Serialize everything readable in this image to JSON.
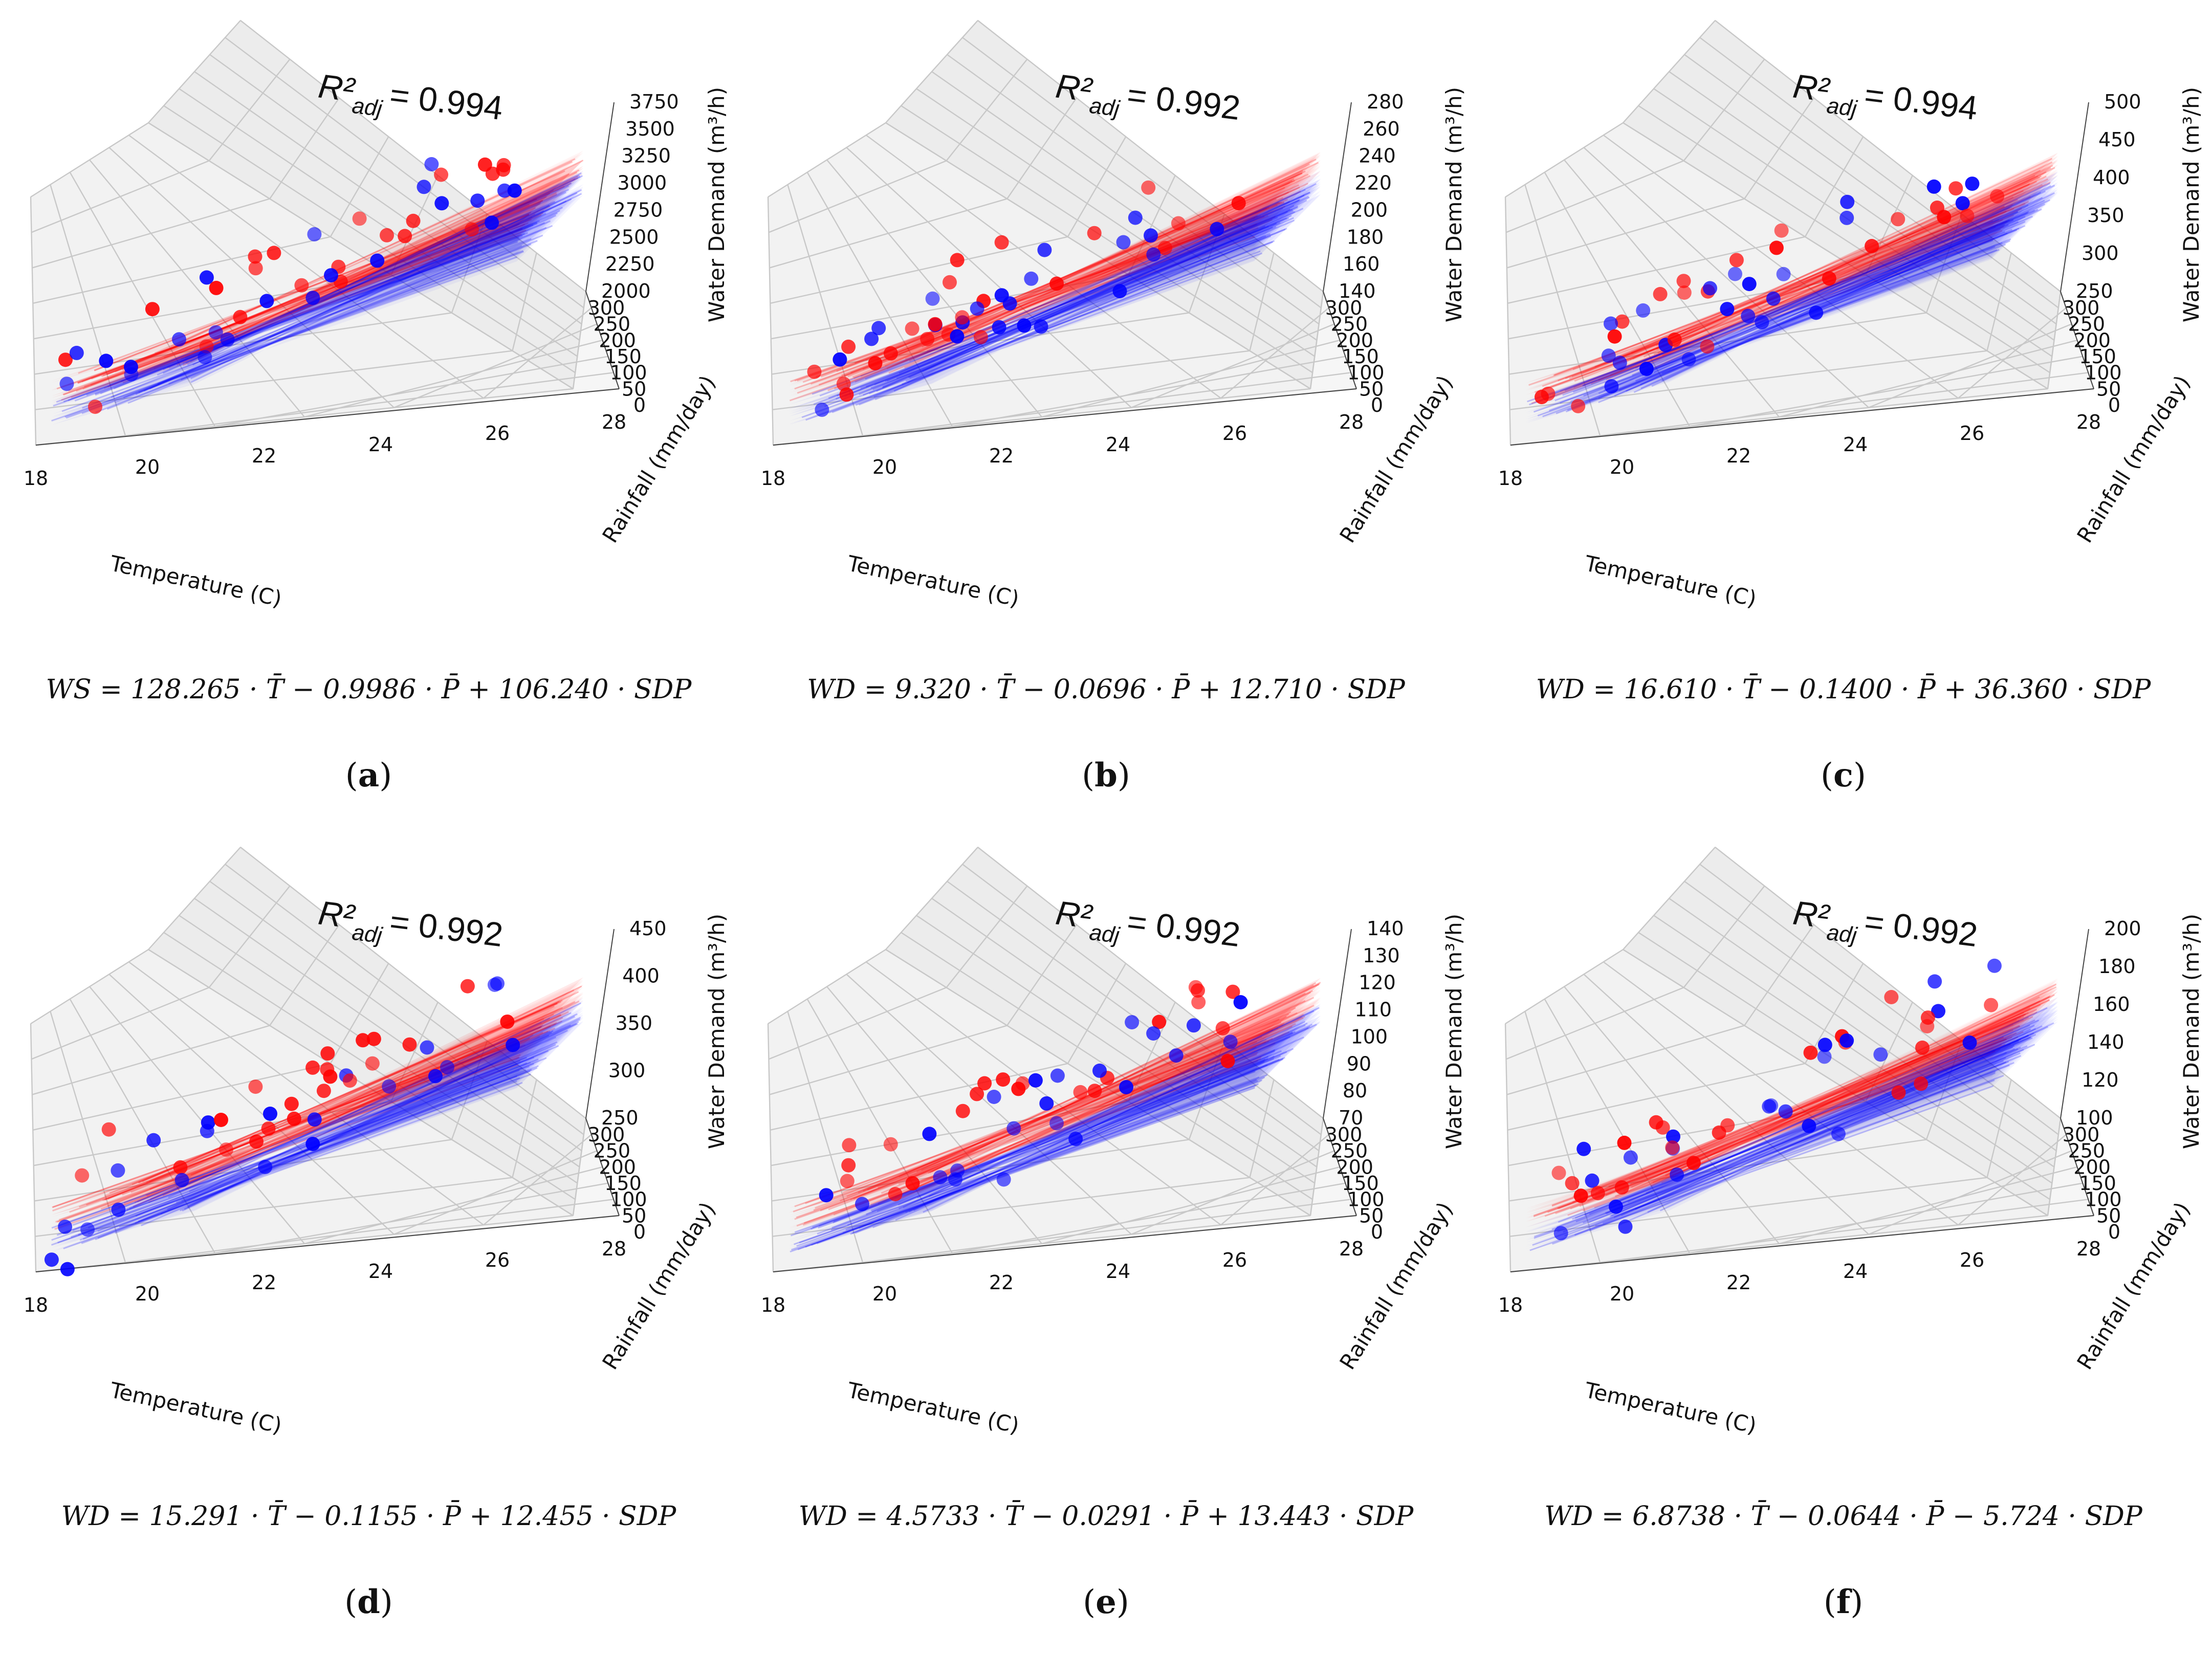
{
  "figure": {
    "panels": [
      {
        "id": "a",
        "label": "a",
        "r2_value": "= 0.994",
        "equation": "WS = 128.265 · T̄ − 0.9986 · P̄ + 106.240 · SDP",
        "z_ticks": [
          "2000",
          "2250",
          "2500",
          "2750",
          "3000",
          "3250",
          "3500",
          "3750"
        ]
      },
      {
        "id": "b",
        "label": "b",
        "r2_value": "= 0.992",
        "equation": "WD = 9.320 · T̄ − 0.0696 · P̄ + 12.710 · SDP",
        "z_ticks": [
          "140",
          "160",
          "180",
          "200",
          "220",
          "240",
          "260",
          "280"
        ]
      },
      {
        "id": "c",
        "label": "c",
        "r2_value": "= 0.994",
        "equation": "WD = 16.610 · T̄ − 0.1400 · P̄ + 36.360 · SDP",
        "z_ticks": [
          "250",
          "300",
          "350",
          "400",
          "450",
          "500"
        ]
      },
      {
        "id": "d",
        "label": "d",
        "r2_value": "= 0.992",
        "equation": "WD = 15.291 · T̄ − 0.1155 · P̄ + 12.455 · SDP",
        "z_ticks": [
          "250",
          "300",
          "350",
          "400",
          "450"
        ]
      },
      {
        "id": "e",
        "label": "e",
        "r2_value": "= 0.992",
        "equation": "WD = 4.5733 · T̄ − 0.0291 · P̄ + 13.443 · SDP",
        "z_ticks": [
          "70",
          "80",
          "90",
          "100",
          "110",
          "120",
          "130",
          "140"
        ]
      },
      {
        "id": "f",
        "label": "f",
        "r2_value": "= 0.992",
        "equation": "WD = 6.8738 · T̄ − 0.0644 · P̄ − 5.724 · SDP",
        "z_ticks": [
          "100",
          "120",
          "140",
          "160",
          "180",
          "200"
        ]
      }
    ]
  },
  "chart_data": {
    "type": "scatter",
    "subtype": "3d-scatter-with-regression-planes",
    "axes": {
      "x_label": "Temperature (C)",
      "y_label": "Rainfall (mm/day)",
      "z_label": "Water Demand (m³/h)",
      "x_ticks": [
        "18",
        "20",
        "22",
        "24",
        "26",
        "28"
      ],
      "y_ticks": [
        "0",
        "50",
        "100",
        "150",
        "200",
        "250",
        "300"
      ],
      "r2_prefix": "R²",
      "r2_sub": "adj"
    },
    "series": [
      {
        "name": "red observations / fitted planes",
        "color": "#ff0000"
      },
      {
        "name": "blue observations / fitted planes",
        "color": "#0000ff"
      }
    ],
    "panels": [
      {
        "id": "a",
        "zlim": [
          2000,
          3750
        ],
        "r2_adj": 0.994
      },
      {
        "id": "b",
        "zlim": [
          140,
          280
        ],
        "r2_adj": 0.992
      },
      {
        "id": "c",
        "zlim": [
          250,
          500
        ],
        "r2_adj": 0.994
      },
      {
        "id": "d",
        "zlim": [
          250,
          450
        ],
        "r2_adj": 0.992
      },
      {
        "id": "e",
        "zlim": [
          70,
          140
        ],
        "r2_adj": 0.992
      },
      {
        "id": "f",
        "zlim": [
          100,
          200
        ],
        "r2_adj": 0.992
      }
    ]
  }
}
